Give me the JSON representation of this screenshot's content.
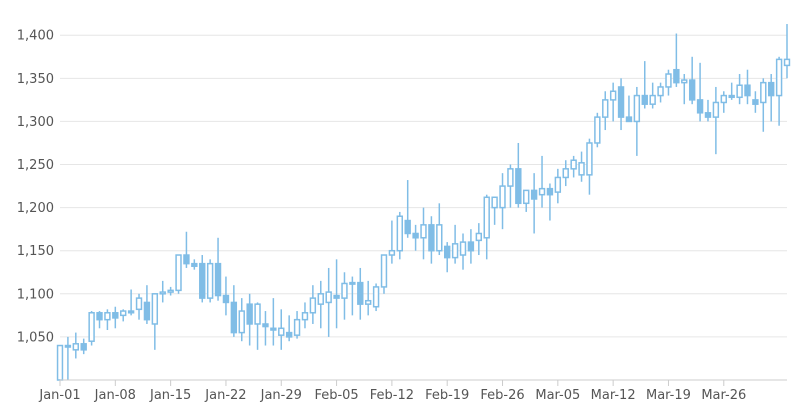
{
  "chart_data": {
    "type": "candlestick",
    "title": "",
    "xlabel": "",
    "ylabel": "",
    "ylim": [
      1000,
      1420
    ],
    "y_ticks": [
      1050,
      1100,
      1150,
      1200,
      1250,
      1300,
      1350,
      1400
    ],
    "y_tick_labels": [
      "1,050",
      "1,100",
      "1,150",
      "1,200",
      "1,250",
      "1,300",
      "1,350",
      "1,400"
    ],
    "x_ticks": [
      "Jan-01",
      "Jan-08",
      "Jan-15",
      "Jan-22",
      "Jan-29",
      "Feb-05",
      "Feb-12",
      "Feb-19",
      "Feb-26",
      "Mar-05",
      "Mar-12",
      "Mar-19",
      "Mar-26"
    ],
    "grid": true,
    "legend": "none",
    "colors": {
      "candle": "#80bde6",
      "grid": "#e6e6e6",
      "axis": "#cccccc"
    },
    "series": [
      {
        "points": [
          {
            "d": "Jan-01",
            "o": 1000,
            "h": 1040,
            "l": 1000,
            "c": 1040
          },
          {
            "d": "Jan-02",
            "o": 1040,
            "h": 1050,
            "l": 1000,
            "c": 1040
          },
          {
            "d": "Jan-03",
            "o": 1035,
            "h": 1055,
            "l": 1025,
            "c": 1042
          },
          {
            "d": "Jan-04",
            "o": 1042,
            "h": 1048,
            "l": 1030,
            "c": 1035
          },
          {
            "d": "Jan-05",
            "o": 1045,
            "h": 1080,
            "l": 1040,
            "c": 1078
          },
          {
            "d": "Jan-06",
            "o": 1078,
            "h": 1080,
            "l": 1060,
            "c": 1070
          },
          {
            "d": "Jan-07",
            "o": 1070,
            "h": 1082,
            "l": 1058,
            "c": 1078
          },
          {
            "d": "Jan-08",
            "o": 1078,
            "h": 1085,
            "l": 1060,
            "c": 1072
          },
          {
            "d": "Jan-09",
            "o": 1075,
            "h": 1082,
            "l": 1068,
            "c": 1080
          },
          {
            "d": "Jan-10",
            "o": 1080,
            "h": 1105,
            "l": 1075,
            "c": 1078
          },
          {
            "d": "Jan-11",
            "o": 1082,
            "h": 1100,
            "l": 1070,
            "c": 1095
          },
          {
            "d": "Jan-12",
            "o": 1090,
            "h": 1110,
            "l": 1065,
            "c": 1070
          },
          {
            "d": "Jan-13",
            "o": 1065,
            "h": 1100,
            "l": 1035,
            "c": 1100
          },
          {
            "d": "Jan-14",
            "o": 1100,
            "h": 1115,
            "l": 1090,
            "c": 1102
          },
          {
            "d": "Jan-15",
            "o": 1102,
            "h": 1108,
            "l": 1098,
            "c": 1104
          },
          {
            "d": "Jan-16",
            "o": 1104,
            "h": 1145,
            "l": 1100,
            "c": 1145
          },
          {
            "d": "Jan-17",
            "o": 1145,
            "h": 1172,
            "l": 1130,
            "c": 1135
          },
          {
            "d": "Jan-18",
            "o": 1135,
            "h": 1140,
            "l": 1128,
            "c": 1132
          },
          {
            "d": "Jan-19",
            "o": 1135,
            "h": 1145,
            "l": 1090,
            "c": 1095
          },
          {
            "d": "Jan-20",
            "o": 1095,
            "h": 1140,
            "l": 1090,
            "c": 1135
          },
          {
            "d": "Jan-21",
            "o": 1135,
            "h": 1165,
            "l": 1092,
            "c": 1098
          },
          {
            "d": "Jan-22",
            "o": 1098,
            "h": 1120,
            "l": 1075,
            "c": 1090
          },
          {
            "d": "Jan-23",
            "o": 1090,
            "h": 1110,
            "l": 1050,
            "c": 1055
          },
          {
            "d": "Jan-24",
            "o": 1055,
            "h": 1095,
            "l": 1045,
            "c": 1080
          },
          {
            "d": "Jan-25",
            "o": 1088,
            "h": 1100,
            "l": 1040,
            "c": 1065
          },
          {
            "d": "Jan-26",
            "o": 1065,
            "h": 1090,
            "l": 1035,
            "c": 1088
          },
          {
            "d": "Jan-27",
            "o": 1065,
            "h": 1080,
            "l": 1040,
            "c": 1062
          },
          {
            "d": "Jan-28",
            "o": 1060,
            "h": 1095,
            "l": 1040,
            "c": 1058
          },
          {
            "d": "Jan-29",
            "o": 1052,
            "h": 1082,
            "l": 1035,
            "c": 1060
          },
          {
            "d": "Jan-30",
            "o": 1055,
            "h": 1075,
            "l": 1045,
            "c": 1050
          },
          {
            "d": "Jan-31",
            "o": 1052,
            "h": 1080,
            "l": 1048,
            "c": 1070
          },
          {
            "d": "Feb-01",
            "o": 1070,
            "h": 1090,
            "l": 1060,
            "c": 1078
          },
          {
            "d": "Feb-02",
            "o": 1078,
            "h": 1110,
            "l": 1065,
            "c": 1095
          },
          {
            "d": "Feb-03",
            "o": 1088,
            "h": 1115,
            "l": 1060,
            "c": 1100
          },
          {
            "d": "Feb-04",
            "o": 1090,
            "h": 1130,
            "l": 1050,
            "c": 1102
          },
          {
            "d": "Feb-05",
            "o": 1098,
            "h": 1140,
            "l": 1060,
            "c": 1095
          },
          {
            "d": "Feb-06",
            "o": 1095,
            "h": 1125,
            "l": 1070,
            "c": 1112
          },
          {
            "d": "Feb-07",
            "o": 1112,
            "h": 1120,
            "l": 1075,
            "c": 1113
          },
          {
            "d": "Feb-08",
            "o": 1113,
            "h": 1130,
            "l": 1070,
            "c": 1088
          },
          {
            "d": "Feb-09",
            "o": 1088,
            "h": 1115,
            "l": 1075,
            "c": 1092
          },
          {
            "d": "Feb-10",
            "o": 1085,
            "h": 1112,
            "l": 1080,
            "c": 1108
          },
          {
            "d": "Feb-11",
            "o": 1108,
            "h": 1145,
            "l": 1100,
            "c": 1145
          },
          {
            "d": "Feb-12",
            "o": 1145,
            "h": 1185,
            "l": 1135,
            "c": 1150
          },
          {
            "d": "Feb-13",
            "o": 1150,
            "h": 1195,
            "l": 1140,
            "c": 1190
          },
          {
            "d": "Feb-14",
            "o": 1185,
            "h": 1232,
            "l": 1165,
            "c": 1170
          },
          {
            "d": "Feb-15",
            "o": 1170,
            "h": 1180,
            "l": 1150,
            "c": 1165
          },
          {
            "d": "Feb-16",
            "o": 1165,
            "h": 1200,
            "l": 1140,
            "c": 1180
          },
          {
            "d": "Feb-17",
            "o": 1180,
            "h": 1190,
            "l": 1135,
            "c": 1150
          },
          {
            "d": "Feb-18",
            "o": 1150,
            "h": 1205,
            "l": 1145,
            "c": 1180
          },
          {
            "d": "Feb-19",
            "o": 1155,
            "h": 1160,
            "l": 1125,
            "c": 1142
          },
          {
            "d": "Feb-20",
            "o": 1142,
            "h": 1180,
            "l": 1135,
            "c": 1158
          },
          {
            "d": "Feb-21",
            "o": 1145,
            "h": 1170,
            "l": 1128,
            "c": 1160
          },
          {
            "d": "Feb-22",
            "o": 1160,
            "h": 1175,
            "l": 1135,
            "c": 1150
          },
          {
            "d": "Feb-23",
            "o": 1162,
            "h": 1182,
            "l": 1145,
            "c": 1170
          },
          {
            "d": "Feb-24",
            "o": 1165,
            "h": 1215,
            "l": 1140,
            "c": 1212
          },
          {
            "d": "Feb-25",
            "o": 1200,
            "h": 1210,
            "l": 1180,
            "c": 1212
          },
          {
            "d": "Feb-26",
            "o": 1200,
            "h": 1240,
            "l": 1175,
            "c": 1225
          },
          {
            "d": "Feb-27",
            "o": 1225,
            "h": 1250,
            "l": 1200,
            "c": 1245
          },
          {
            "d": "Feb-28",
            "o": 1245,
            "h": 1275,
            "l": 1200,
            "c": 1205
          },
          {
            "d": "Mar-01",
            "o": 1205,
            "h": 1220,
            "l": 1195,
            "c": 1220
          },
          {
            "d": "Mar-02",
            "o": 1220,
            "h": 1240,
            "l": 1170,
            "c": 1210
          },
          {
            "d": "Mar-03",
            "o": 1215,
            "h": 1260,
            "l": 1200,
            "c": 1222
          },
          {
            "d": "Mar-04",
            "o": 1222,
            "h": 1228,
            "l": 1185,
            "c": 1215
          },
          {
            "d": "Mar-05",
            "o": 1218,
            "h": 1245,
            "l": 1205,
            "c": 1235
          },
          {
            "d": "Mar-06",
            "o": 1235,
            "h": 1255,
            "l": 1225,
            "c": 1245
          },
          {
            "d": "Mar-07",
            "o": 1245,
            "h": 1260,
            "l": 1235,
            "c": 1255
          },
          {
            "d": "Mar-08",
            "o": 1238,
            "h": 1265,
            "l": 1230,
            "c": 1252
          },
          {
            "d": "Mar-09",
            "o": 1238,
            "h": 1280,
            "l": 1215,
            "c": 1275
          },
          {
            "d": "Mar-10",
            "o": 1275,
            "h": 1310,
            "l": 1270,
            "c": 1305
          },
          {
            "d": "Mar-11",
            "o": 1305,
            "h": 1335,
            "l": 1290,
            "c": 1325
          },
          {
            "d": "Mar-12",
            "o": 1325,
            "h": 1345,
            "l": 1300,
            "c": 1335
          },
          {
            "d": "Mar-13",
            "o": 1340,
            "h": 1350,
            "l": 1290,
            "c": 1305
          },
          {
            "d": "Mar-14",
            "o": 1305,
            "h": 1330,
            "l": 1300,
            "c": 1300
          },
          {
            "d": "Mar-15",
            "o": 1300,
            "h": 1340,
            "l": 1260,
            "c": 1330
          },
          {
            "d": "Mar-16",
            "o": 1330,
            "h": 1370,
            "l": 1315,
            "c": 1320
          },
          {
            "d": "Mar-17",
            "o": 1320,
            "h": 1345,
            "l": 1315,
            "c": 1330
          },
          {
            "d": "Mar-18",
            "o": 1330,
            "h": 1345,
            "l": 1322,
            "c": 1340
          },
          {
            "d": "Mar-19",
            "o": 1340,
            "h": 1360,
            "l": 1330,
            "c": 1355
          },
          {
            "d": "Mar-20",
            "o": 1360,
            "h": 1402,
            "l": 1340,
            "c": 1345
          },
          {
            "d": "Mar-21",
            "o": 1345,
            "h": 1355,
            "l": 1320,
            "c": 1348
          },
          {
            "d": "Mar-22",
            "o": 1348,
            "h": 1375,
            "l": 1320,
            "c": 1325
          },
          {
            "d": "Mar-23",
            "o": 1325,
            "h": 1368,
            "l": 1300,
            "c": 1310
          },
          {
            "d": "Mar-24",
            "o": 1310,
            "h": 1325,
            "l": 1300,
            "c": 1305
          },
          {
            "d": "Mar-25",
            "o": 1305,
            "h": 1340,
            "l": 1262,
            "c": 1322
          },
          {
            "d": "Mar-26",
            "o": 1322,
            "h": 1335,
            "l": 1310,
            "c": 1330
          },
          {
            "d": "Mar-27",
            "o": 1330,
            "h": 1345,
            "l": 1325,
            "c": 1328
          },
          {
            "d": "Mar-28",
            "o": 1328,
            "h": 1355,
            "l": 1320,
            "c": 1342
          },
          {
            "d": "Mar-29",
            "o": 1342,
            "h": 1360,
            "l": 1320,
            "c": 1330
          },
          {
            "d": "Mar-30",
            "o": 1325,
            "h": 1335,
            "l": 1310,
            "c": 1320
          },
          {
            "d": "Mar-31",
            "o": 1322,
            "h": 1350,
            "l": 1288,
            "c": 1345
          },
          {
            "d": "Apr-01",
            "o": 1345,
            "h": 1355,
            "l": 1300,
            "c": 1330
          },
          {
            "d": "Apr-02",
            "o": 1330,
            "h": 1375,
            "l": 1295,
            "c": 1372
          },
          {
            "d": "Apr-03",
            "o": 1365,
            "h": 1413,
            "l": 1350,
            "c": 1372
          }
        ]
      }
    ]
  }
}
